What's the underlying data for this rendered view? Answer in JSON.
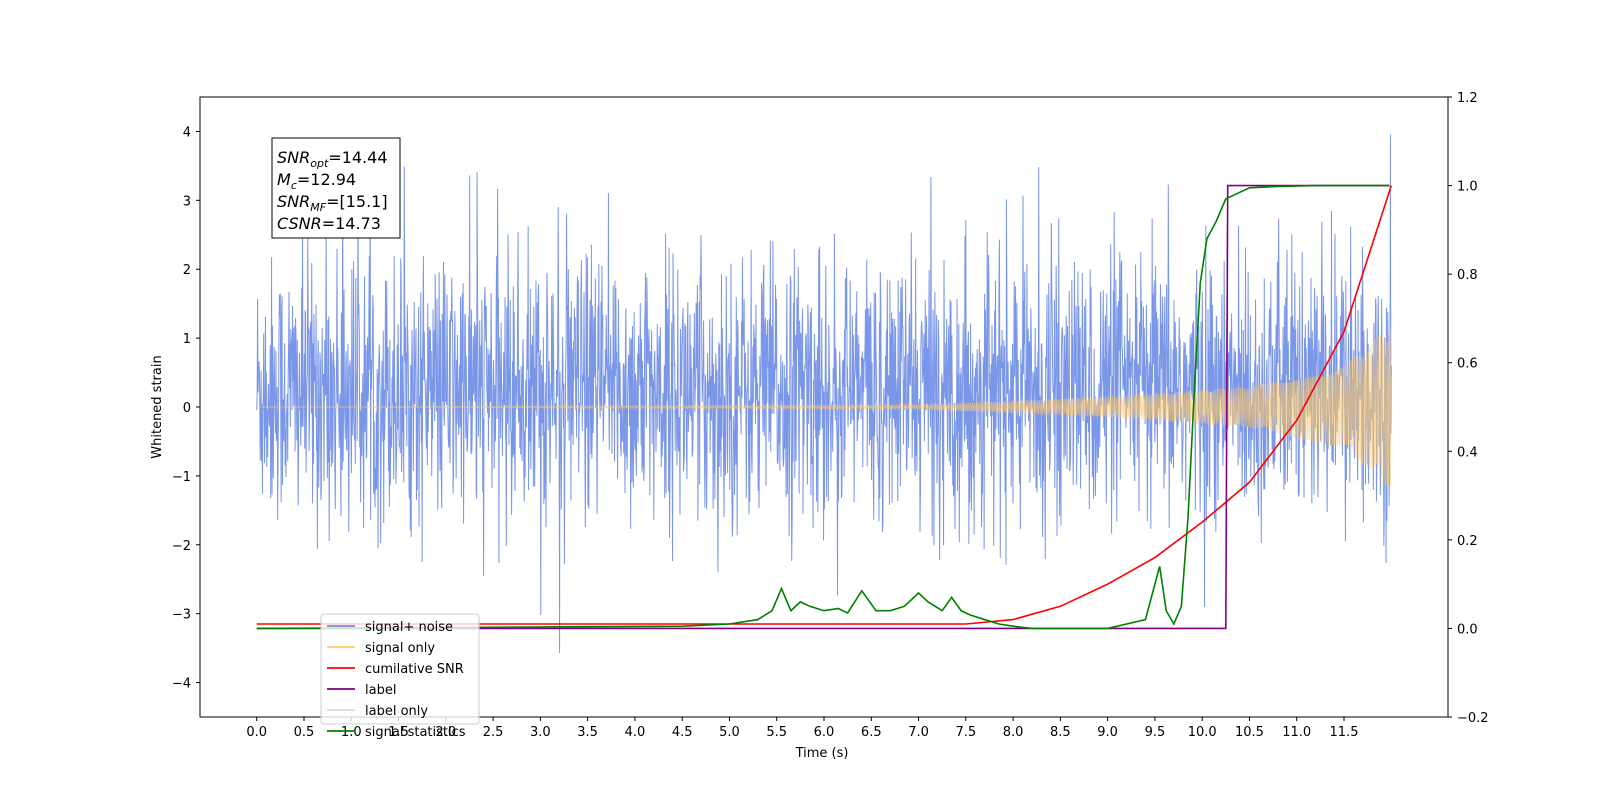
{
  "chart_data": {
    "type": "line",
    "title": "",
    "xlabel": "Time (s)",
    "ylabel": "Whitened strain",
    "y2label": "",
    "xlim": [
      -0.6,
      12.6
    ],
    "ylim": [
      -4.5,
      4.5
    ],
    "y2lim": [
      -0.2,
      1.2
    ],
    "xticks": [
      "0.0",
      "0.5",
      "1.0",
      "1.5",
      "2.0",
      "2.5",
      "3.0",
      "3.5",
      "4.0",
      "4.5",
      "5.0",
      "5.5",
      "6.0",
      "6.5",
      "7.0",
      "7.5",
      "8.0",
      "8.5",
      "9.0",
      "9.5",
      "10.0",
      "10.5",
      "11.0",
      "11.5"
    ],
    "yticks": [
      "−4",
      "−3",
      "−2",
      "−1",
      "0",
      "1",
      "2",
      "3",
      "4"
    ],
    "y2ticks": [
      "−0.2",
      "0.0",
      "0.2",
      "0.4",
      "0.6",
      "0.8",
      "1.0",
      "1.2"
    ],
    "grid": false,
    "legend_position": "bottom-left",
    "annotation": {
      "lines": [
        {
          "base": "SNR",
          "sub": "opt",
          "value": "=14.44"
        },
        {
          "base": "M",
          "sub": "c",
          "value": "=12.94"
        },
        {
          "base": "SNR",
          "sub": "MF",
          "value": "=[15.1]"
        },
        {
          "base": "CSNR",
          "sub": "",
          "value": "=14.73"
        }
      ]
    },
    "legend": [
      {
        "label": "signal+ noise",
        "color": "#6b8be6"
      },
      {
        "label": "signal only",
        "color": "#ffc966"
      },
      {
        "label": "cumilative SNR",
        "color": "#ff0000"
      },
      {
        "label": "label",
        "color": "#800080"
      },
      {
        "label": "label only",
        "color": "#d8d8d8"
      },
      {
        "label": "signal statistics",
        "color": "#008000"
      }
    ],
    "series": [
      {
        "name": "signal+ noise",
        "axis": "left",
        "color": "#6b8be6",
        "style": "noise",
        "x_range": [
          0.0,
          12.0
        ],
        "typical_range": [
          -2.0,
          2.0
        ],
        "extreme_range": [
          -4.1,
          4.05
        ]
      },
      {
        "name": "signal only",
        "axis": "left",
        "color": "#ffc966",
        "style": "chirp",
        "x_range": [
          0.0,
          12.0
        ],
        "amplitude_at": [
          [
            0.0,
            0.0
          ],
          [
            7.0,
            0.03
          ],
          [
            9.0,
            0.15
          ],
          [
            10.5,
            0.3
          ],
          [
            11.5,
            0.6
          ],
          [
            12.0,
            1.2
          ]
        ]
      },
      {
        "name": "cumilative SNR",
        "axis": "right",
        "color": "#ff0000",
        "x": [
          0.0,
          7.5,
          8.0,
          8.5,
          9.0,
          9.5,
          10.0,
          10.5,
          11.0,
          11.5,
          12.0
        ],
        "values": [
          0.01,
          0.01,
          0.02,
          0.05,
          0.1,
          0.16,
          0.24,
          0.33,
          0.47,
          0.67,
          1.0
        ]
      },
      {
        "name": "label",
        "axis": "right",
        "color": "#800080",
        "x": [
          0.0,
          10.25,
          10.27,
          11.98
        ],
        "values": [
          0.0,
          0.0,
          1.0,
          1.0
        ]
      },
      {
        "name": "signal statistics",
        "axis": "right",
        "color": "#008000",
        "x": [
          0.0,
          4.5,
          5.0,
          5.3,
          5.45,
          5.55,
          5.65,
          5.75,
          5.85,
          6.0,
          6.15,
          6.25,
          6.4,
          6.55,
          6.7,
          6.85,
          7.0,
          7.1,
          7.25,
          7.35,
          7.45,
          7.55,
          7.7,
          7.85,
          8.0,
          8.2,
          8.5,
          9.0,
          9.4,
          9.55,
          9.62,
          9.7,
          9.78,
          9.85,
          9.92,
          9.98,
          10.05,
          10.15,
          10.25,
          10.35,
          10.5,
          10.8,
          11.2,
          11.98
        ],
        "values": [
          0.0,
          0.005,
          0.01,
          0.02,
          0.04,
          0.09,
          0.04,
          0.06,
          0.05,
          0.04,
          0.045,
          0.035,
          0.085,
          0.04,
          0.04,
          0.05,
          0.08,
          0.06,
          0.04,
          0.07,
          0.04,
          0.03,
          0.02,
          0.01,
          0.005,
          0.0,
          0.0,
          0.0,
          0.02,
          0.14,
          0.04,
          0.01,
          0.05,
          0.25,
          0.55,
          0.78,
          0.88,
          0.92,
          0.97,
          0.98,
          0.995,
          0.998,
          1.0,
          1.0
        ]
      }
    ]
  }
}
